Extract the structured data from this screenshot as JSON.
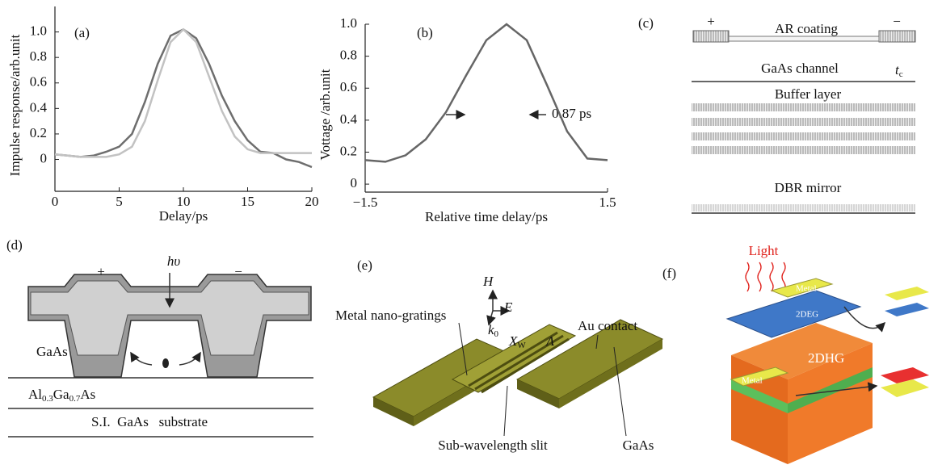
{
  "chart_data": [
    {
      "type": "line",
      "annotations": [
        "(a)"
      ],
      "xlabel": "Delay/ps",
      "ylabel": "Impulse response/arb.unit",
      "x": [
        0,
        1,
        2,
        3,
        4,
        5,
        6,
        7,
        8,
        9,
        10,
        11,
        12,
        13,
        14,
        15,
        16,
        17,
        18,
        19,
        20
      ],
      "xlim": [
        0,
        20
      ],
      "xticks": [
        0,
        5,
        10,
        15,
        20
      ],
      "ylim": [
        -0.25,
        1.2
      ],
      "yticks": [
        0,
        0.2,
        0.4,
        0.6,
        0.8,
        {
          "value": 1,
          "label": "1.0"
        }
      ],
      "series": [
        {
          "color": "#6e6e6e",
          "values": [
            0.04,
            0.03,
            0.02,
            0.03,
            0.06,
            0.1,
            0.2,
            0.45,
            0.75,
            0.97,
            1.02,
            0.95,
            0.75,
            0.5,
            0.3,
            0.15,
            0.06,
            0.05,
            0.0,
            -0.02,
            -0.06
          ]
        },
        {
          "color": "#c2c2c2",
          "values": [
            0.04,
            0.03,
            0.02,
            0.02,
            0.02,
            0.04,
            0.1,
            0.3,
            0.62,
            0.92,
            1.02,
            0.92,
            0.65,
            0.38,
            0.18,
            0.08,
            0.05,
            0.05,
            0.05,
            0.05,
            0.05
          ]
        }
      ]
    },
    {
      "type": "line",
      "annotations": [
        "(b)",
        "0.87 ps"
      ],
      "xlabel": "Relative time delay/ps",
      "ylabel": "Vottage /arb.unit",
      "x": [
        -1.5,
        -1.25,
        -1,
        -0.75,
        -0.5,
        -0.25,
        0,
        0.25,
        0.5,
        0.75,
        1,
        1.25,
        1.5
      ],
      "values": [
        0.15,
        0.14,
        0.18,
        0.28,
        0.45,
        0.68,
        0.9,
        1.0,
        0.9,
        0.62,
        0.33,
        0.16,
        0.15
      ],
      "color": "#666666",
      "xlim": [
        -1.5,
        1.5
      ],
      "xticks": [
        {
          "value": -1.5,
          "label": "−1.5"
        },
        1.5
      ],
      "ylim": [
        -0.05,
        1
      ],
      "yticks": [
        0,
        0.2,
        0.4,
        0.6,
        0.8,
        {
          "value": 1,
          "label": "1.0"
        }
      ]
    }
  ],
  "panel_c": {
    "label": "(c)",
    "plus": "+",
    "minus": "−",
    "ar_coating": "AR coating",
    "channel": "GaAs channel",
    "thickness": {
      "symbol": "t",
      "sub": "c"
    },
    "buffer": "Buffer layer",
    "dbr": "DBR mirror"
  },
  "panel_d": {
    "label": "(d)",
    "plus": "+",
    "photon": "hυ",
    "minus": "−",
    "gaas": "GaAs",
    "algaas": [
      "Al",
      "0.3",
      "Ga",
      "0.7",
      "As"
    ],
    "substrate": "S.I.  GaAs   substrate"
  },
  "panel_e": {
    "label": "(e)",
    "h": "H",
    "e": "E",
    "k": {
      "symbol": "k",
      "sub": "0"
    },
    "xw": {
      "symbol": "X",
      "sub": "W"
    },
    "period": "Λ",
    "gratings": "Metal nano-gratings",
    "contact": "Au contact",
    "slit": "Sub-wavelength slit",
    "substrate": "GaAs"
  },
  "panel_f": {
    "label": "(f)",
    "light": "Light",
    "metal_top": "Metal",
    "deg": "2DEG",
    "dhg": "2DHG",
    "metal_side": "Metal"
  }
}
